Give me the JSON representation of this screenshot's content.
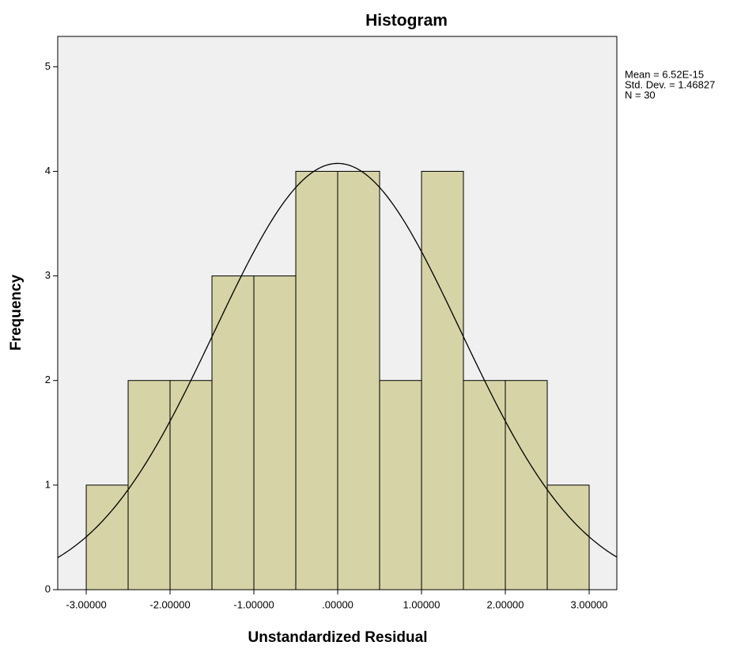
{
  "chart_data": {
    "type": "histogram",
    "title": "Histogram",
    "x_label": "Unstandardized Residual",
    "y_label": "Frequency",
    "bins": [
      -3,
      -2.5,
      -2,
      -1.5,
      -1,
      -0.5,
      0,
      0.5,
      1,
      1.5,
      2,
      2.5,
      3
    ],
    "counts": [
      1,
      2,
      2,
      3,
      3,
      4,
      4,
      2,
      4,
      2,
      2,
      1
    ],
    "color": "#d6d3a6",
    "edge_color": "#000000",
    "background": "#f0f0f0",
    "xlim": [
      -3.34,
      3.33
    ],
    "ylim": [
      0,
      5.29
    ],
    "xticks": [
      {
        "value": -3,
        "label": "-3.00000"
      },
      {
        "value": -2,
        "label": "-2.00000"
      },
      {
        "value": -1,
        "label": "-1.00000"
      },
      {
        "value": 0,
        "label": ".00000"
      },
      {
        "value": 1,
        "label": "1.00000"
      },
      {
        "value": 2,
        "label": "2.00000"
      },
      {
        "value": 3,
        "label": "3.00000"
      }
    ],
    "yticks": [
      0,
      1,
      2,
      3,
      4,
      5
    ],
    "normal_curve": true,
    "stats": {
      "mean": {
        "value": 6.52e-15,
        "label": "Mean = 6.52E-15"
      },
      "std": {
        "value": 1.46827,
        "label": "Std. Dev. = 1.46827"
      },
      "n": {
        "value": 30,
        "label": "N = 30"
      }
    }
  }
}
